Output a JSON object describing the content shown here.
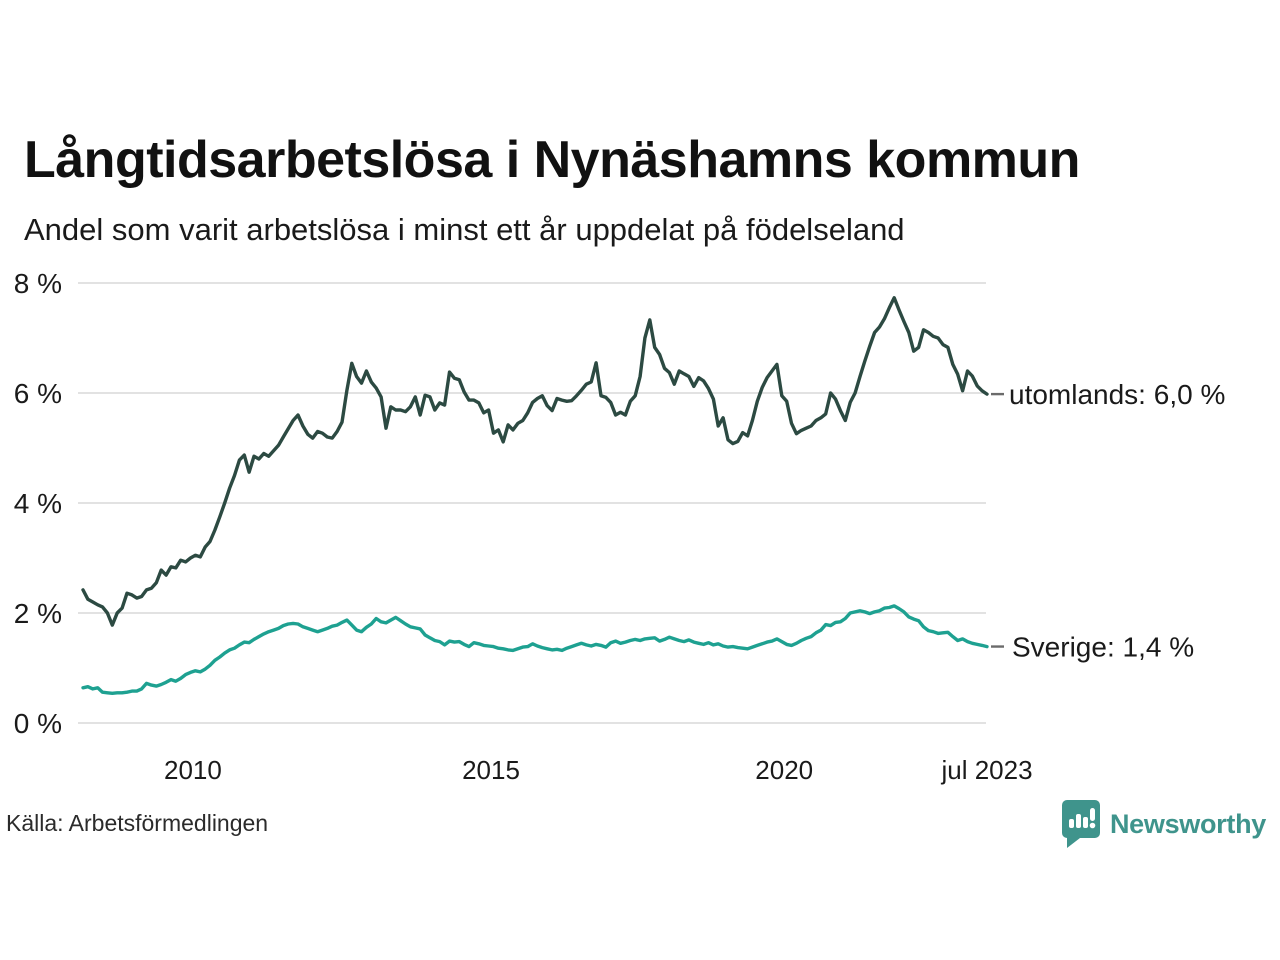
{
  "header": {
    "title": "Långtidsarbetslösa i Nynäshamns kommun",
    "subtitle": "Andel som varit arbetslösa i minst ett år uppdelat på födelseland"
  },
  "footer": {
    "source": "Källa: Arbetsförmedlingen",
    "brand": "Newsworthy"
  },
  "colors": {
    "utomlands_line": "#2c4a42",
    "sverige_line": "#1ea191",
    "grid": "#e2e2e2",
    "leader_dash": "#6b6b6b",
    "text": "#1a1a1a",
    "brand_teal": "#3f948c"
  },
  "chart_data": {
    "type": "line",
    "title": "Långtidsarbetslösa i Nynäshamns kommun",
    "subtitle": "Andel som varit arbetslösa i minst ett år uppdelat på födelseland",
    "unit": "%",
    "x_interval": "monthly",
    "x_start": "2008-03",
    "x_end": "2023-07",
    "ylim": [
      0,
      8
    ],
    "grid": "horizontal",
    "legend_position": "end-of-line",
    "y_ticks": [
      {
        "label": "8 %",
        "value": 8
      },
      {
        "label": "6 %",
        "value": 6
      },
      {
        "label": "4 %",
        "value": 4
      },
      {
        "label": "2 %",
        "value": 2
      },
      {
        "label": "0 %",
        "value": 0
      }
    ],
    "x_ticks": [
      {
        "label": "2010",
        "pos": 22.5
      },
      {
        "label": "2015",
        "pos": 83.5
      },
      {
        "label": "2020",
        "pos": 143.5
      },
      {
        "label": "jul 2023",
        "pos": 185
      }
    ],
    "series": [
      {
        "name": "utomlands",
        "end_label": "utomlands: 6,0 %",
        "end_value_text": "6,0 %",
        "color": "#2c4a42",
        "values": [
          2.42,
          2.25,
          2.2,
          2.15,
          2.11,
          2.0,
          1.78,
          2.0,
          2.09,
          2.36,
          2.33,
          2.27,
          2.3,
          2.42,
          2.45,
          2.55,
          2.78,
          2.69,
          2.84,
          2.82,
          2.96,
          2.93,
          3.0,
          3.05,
          3.02,
          3.2,
          3.3,
          3.51,
          3.75,
          4.0,
          4.27,
          4.5,
          4.78,
          4.87,
          4.56,
          4.85,
          4.8,
          4.9,
          4.85,
          4.95,
          5.05,
          5.2,
          5.35,
          5.5,
          5.6,
          5.4,
          5.25,
          5.18,
          5.3,
          5.27,
          5.2,
          5.18,
          5.3,
          5.47,
          6.05,
          6.54,
          6.3,
          6.18,
          6.4,
          6.2,
          6.09,
          5.93,
          5.36,
          5.75,
          5.69,
          5.69,
          5.66,
          5.75,
          5.93,
          5.6,
          5.96,
          5.93,
          5.69,
          5.82,
          5.78,
          6.38,
          6.27,
          6.24,
          6.02,
          5.87,
          5.87,
          5.82,
          5.64,
          5.69,
          5.27,
          5.33,
          5.11,
          5.42,
          5.33,
          5.45,
          5.5,
          5.64,
          5.83,
          5.9,
          5.95,
          5.77,
          5.68,
          5.9,
          5.87,
          5.85,
          5.86,
          5.95,
          6.05,
          6.16,
          6.2,
          6.55,
          5.95,
          5.92,
          5.83,
          5.6,
          5.65,
          5.6,
          5.85,
          5.95,
          6.3,
          7.0,
          7.33,
          6.83,
          6.7,
          6.45,
          6.37,
          6.16,
          6.4,
          6.35,
          6.3,
          6.12,
          6.28,
          6.22,
          6.08,
          5.89,
          5.4,
          5.55,
          5.15,
          5.08,
          5.12,
          5.28,
          5.22,
          5.5,
          5.85,
          6.1,
          6.28,
          6.4,
          6.52,
          5.95,
          5.85,
          5.45,
          5.26,
          5.32,
          5.36,
          5.4,
          5.5,
          5.55,
          5.62,
          6.0,
          5.89,
          5.68,
          5.5,
          5.83,
          6.0,
          6.3,
          6.58,
          6.85,
          7.1,
          7.2,
          7.35,
          7.55,
          7.73,
          7.51,
          7.3,
          7.1,
          6.76,
          6.83,
          7.15,
          7.1,
          7.03,
          7.0,
          6.88,
          6.83,
          6.52,
          6.34,
          6.04,
          6.4,
          6.31,
          6.13,
          6.04,
          5.98
        ]
      },
      {
        "name": "Sverige",
        "end_label": "Sverige: 1,4 %",
        "end_value_text": "1,4 %",
        "color": "#1ea191",
        "values": [
          0.64,
          0.66,
          0.62,
          0.64,
          0.56,
          0.55,
          0.54,
          0.55,
          0.55,
          0.56,
          0.58,
          0.58,
          0.62,
          0.72,
          0.69,
          0.67,
          0.7,
          0.74,
          0.79,
          0.76,
          0.81,
          0.88,
          0.92,
          0.95,
          0.93,
          0.98,
          1.05,
          1.14,
          1.2,
          1.27,
          1.33,
          1.36,
          1.42,
          1.47,
          1.46,
          1.52,
          1.57,
          1.62,
          1.66,
          1.69,
          1.72,
          1.77,
          1.8,
          1.81,
          1.8,
          1.75,
          1.72,
          1.69,
          1.66,
          1.69,
          1.72,
          1.76,
          1.78,
          1.83,
          1.87,
          1.78,
          1.69,
          1.66,
          1.74,
          1.8,
          1.9,
          1.84,
          1.82,
          1.87,
          1.92,
          1.86,
          1.8,
          1.75,
          1.73,
          1.71,
          1.6,
          1.55,
          1.5,
          1.48,
          1.42,
          1.49,
          1.47,
          1.48,
          1.43,
          1.39,
          1.46,
          1.44,
          1.41,
          1.4,
          1.39,
          1.36,
          1.35,
          1.33,
          1.32,
          1.35,
          1.38,
          1.39,
          1.44,
          1.4,
          1.37,
          1.35,
          1.33,
          1.34,
          1.32,
          1.36,
          1.39,
          1.42,
          1.45,
          1.42,
          1.4,
          1.43,
          1.41,
          1.38,
          1.46,
          1.49,
          1.45,
          1.47,
          1.5,
          1.52,
          1.5,
          1.53,
          1.54,
          1.55,
          1.49,
          1.52,
          1.56,
          1.53,
          1.5,
          1.48,
          1.51,
          1.47,
          1.45,
          1.43,
          1.46,
          1.42,
          1.44,
          1.4,
          1.38,
          1.39,
          1.37,
          1.36,
          1.35,
          1.38,
          1.41,
          1.44,
          1.47,
          1.49,
          1.53,
          1.48,
          1.43,
          1.41,
          1.45,
          1.5,
          1.54,
          1.57,
          1.64,
          1.69,
          1.79,
          1.77,
          1.83,
          1.84,
          1.9,
          2.0,
          2.02,
          2.04,
          2.02,
          1.99,
          2.02,
          2.04,
          2.09,
          2.1,
          2.13,
          2.08,
          2.02,
          1.93,
          1.89,
          1.86,
          1.75,
          1.68,
          1.66,
          1.63,
          1.64,
          1.65,
          1.57,
          1.5,
          1.53,
          1.48,
          1.45,
          1.43,
          1.41,
          1.39
        ]
      }
    ]
  }
}
